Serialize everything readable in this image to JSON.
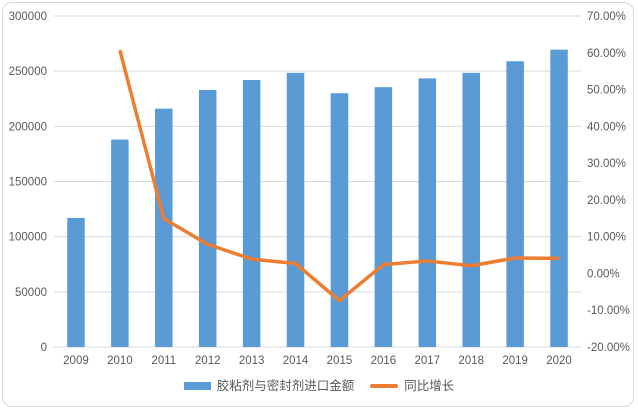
{
  "chart_data": {
    "type": "combo-bar-line",
    "title": "",
    "categories": [
      "2009",
      "2010",
      "2011",
      "2012",
      "2013",
      "2014",
      "2015",
      "2016",
      "2017",
      "2018",
      "2019",
      "2020"
    ],
    "series": [
      {
        "name": "胶粘剂与密封剂进口金额",
        "type": "bar",
        "axis": "left",
        "color": "#5B9BD5",
        "values": [
          117000,
          188000,
          216000,
          233000,
          242000,
          248500,
          230000,
          235500,
          243500,
          248500,
          259000,
          269500
        ]
      },
      {
        "name": "同比增长",
        "type": "line",
        "axis": "right",
        "color": "#ED7D31",
        "values": [
          null,
          60.7,
          14.9,
          7.9,
          3.9,
          2.7,
          -7.4,
          2.4,
          3.4,
          2.1,
          4.2,
          4.1
        ]
      }
    ],
    "left_axis": {
      "min": 0,
      "max": 300000,
      "step": 50000,
      "tick_labels": [
        "0",
        "50000",
        "100000",
        "150000",
        "200000",
        "250000",
        "300000"
      ]
    },
    "right_axis": {
      "min": -20,
      "max": 70,
      "step": 10,
      "tick_labels": [
        "-20.00%",
        "-10.00%",
        "0.00%",
        "10.00%",
        "20.00%",
        "30.00%",
        "40.00%",
        "50.00%",
        "60.00%",
        "70.00%"
      ]
    },
    "grid": true,
    "legend_position": "bottom",
    "colors": {
      "grid": "#D9D9D9",
      "axis_line": "#D9D9D9",
      "axis_text": "#595959",
      "frame_border": "#D9D9D9",
      "background": "#FFFFFF"
    }
  }
}
